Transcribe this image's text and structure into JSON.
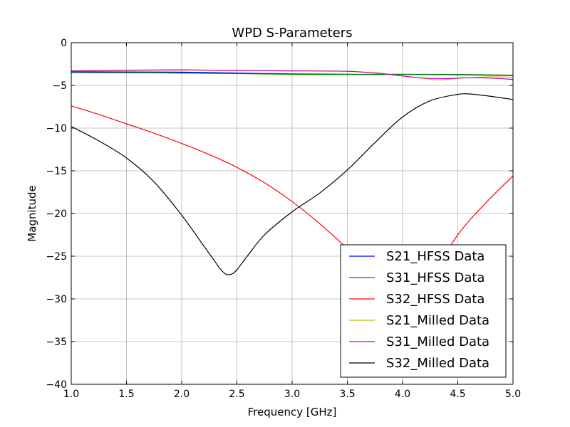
{
  "chart_data": {
    "type": "line",
    "title": "WPD S-Parameters",
    "xlabel": "Frequency [GHz]",
    "ylabel": "Magnitude",
    "xlim": [
      1.0,
      5.0
    ],
    "ylim": [
      -40,
      0
    ],
    "xticks": [
      "1.0",
      "1.5",
      "2.0",
      "2.5",
      "3.0",
      "3.5",
      "4.0",
      "4.5",
      "5.0"
    ],
    "yticks": [
      "0",
      "−5",
      "−10",
      "−15",
      "−20",
      "−25",
      "−30",
      "−35",
      "−40"
    ],
    "grid": true,
    "legend_position": "lower-right",
    "series": [
      {
        "name": "S21_HFSS Data",
        "color": "#0000ff",
        "x": [
          1.0,
          1.5,
          2.0,
          2.5,
          3.0,
          3.5,
          4.0,
          4.5,
          5.0
        ],
        "y": [
          -3.4,
          -3.42,
          -3.45,
          -3.55,
          -3.65,
          -3.7,
          -3.72,
          -3.75,
          -3.85
        ]
      },
      {
        "name": "S31_HFSS Data",
        "color": "#008000",
        "x": [
          1.0,
          1.5,
          2.0,
          2.5,
          3.0,
          3.5,
          4.0,
          4.5,
          5.0
        ],
        "y": [
          -3.5,
          -3.52,
          -3.55,
          -3.62,
          -3.7,
          -3.72,
          -3.7,
          -3.72,
          -3.8
        ]
      },
      {
        "name": "S32_HFSS Data",
        "color": "#ff0000",
        "x": [
          1.0,
          1.25,
          1.5,
          1.75,
          2.0,
          2.25,
          2.5,
          2.75,
          3.0,
          3.25,
          3.5,
          3.75,
          4.0,
          4.25,
          4.5,
          4.75,
          5.0
        ],
        "y": [
          -7.4,
          -8.4,
          -9.5,
          -10.6,
          -11.8,
          -13.1,
          -14.6,
          -16.4,
          -18.6,
          -21.2,
          -24.1,
          -27.2,
          -29.8,
          -27.5,
          -22.5,
          -18.8,
          -15.6
        ]
      },
      {
        "name": "S21_Milled Data",
        "color": "#bfbf00",
        "x": [
          1.0,
          1.5,
          2.0,
          2.5,
          3.0,
          3.5,
          3.8,
          4.0,
          4.2,
          4.3,
          4.4,
          4.6,
          4.8,
          5.0
        ],
        "y": [
          -3.3,
          -3.25,
          -3.2,
          -3.25,
          -3.3,
          -3.35,
          -3.6,
          -3.9,
          -4.2,
          -4.35,
          -4.3,
          -4.1,
          -4.0,
          -4.05
        ]
      },
      {
        "name": "S31_Milled Data",
        "color": "#bf00bf",
        "x": [
          1.0,
          1.5,
          2.0,
          2.5,
          3.0,
          3.5,
          3.8,
          4.0,
          4.2,
          4.4,
          4.6,
          4.8,
          5.0
        ],
        "y": [
          -3.3,
          -3.22,
          -3.18,
          -3.25,
          -3.3,
          -3.35,
          -3.6,
          -3.9,
          -4.15,
          -4.2,
          -4.1,
          -4.15,
          -4.3
        ]
      },
      {
        "name": "S32_Milled Data",
        "color": "#000000",
        "x": [
          1.0,
          1.25,
          1.5,
          1.75,
          2.0,
          2.2,
          2.3,
          2.35,
          2.4,
          2.45,
          2.5,
          2.6,
          2.75,
          3.0,
          3.25,
          3.5,
          3.75,
          4.0,
          4.25,
          4.5,
          4.6,
          4.75,
          5.0
        ],
        "y": [
          -9.8,
          -11.5,
          -13.5,
          -16.3,
          -20.2,
          -23.8,
          -25.6,
          -26.5,
          -27.1,
          -27.1,
          -26.6,
          -24.9,
          -22.5,
          -19.8,
          -17.6,
          -14.9,
          -11.7,
          -8.7,
          -6.8,
          -6.05,
          -6.0,
          -6.2,
          -6.65
        ]
      }
    ]
  }
}
